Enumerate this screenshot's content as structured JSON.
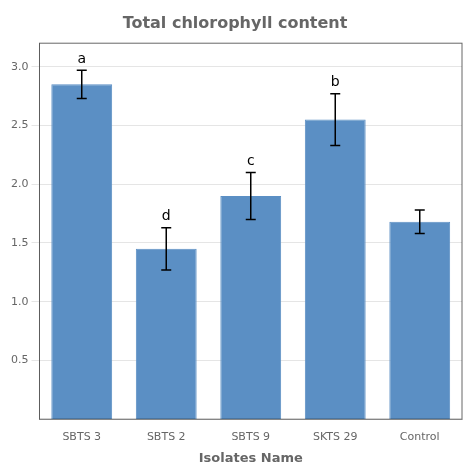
{
  "chart_data": {
    "type": "bar",
    "title": "Total chlorophyll content",
    "xlabel": "Isolates Name",
    "categories": [
      "SBTS 3",
      "SBTS 2",
      "SBTS 9",
      "SKTS 29",
      "Control"
    ],
    "values": [
      2.85,
      1.45,
      1.9,
      2.55,
      1.68
    ],
    "errors": [
      0.12,
      0.18,
      0.2,
      0.22,
      0.1
    ],
    "annotations": [
      {
        "category": "SBTS 3",
        "text": "a"
      },
      {
        "category": "SBTS 2",
        "text": "d"
      },
      {
        "category": "SBTS 9",
        "text": "c"
      },
      {
        "category": "SKTS 29",
        "text": "b"
      }
    ],
    "color": "#5b8fc4",
    "ylim": [
      0,
      3.2
    ],
    "yticks": [
      0.5,
      {
        "value": 1,
        "label": "1.0"
      },
      1.5,
      {
        "value": 2,
        "label": "2.0"
      },
      2.5,
      {
        "value": 3,
        "label": "3.0"
      }
    ],
    "grid": true
  }
}
